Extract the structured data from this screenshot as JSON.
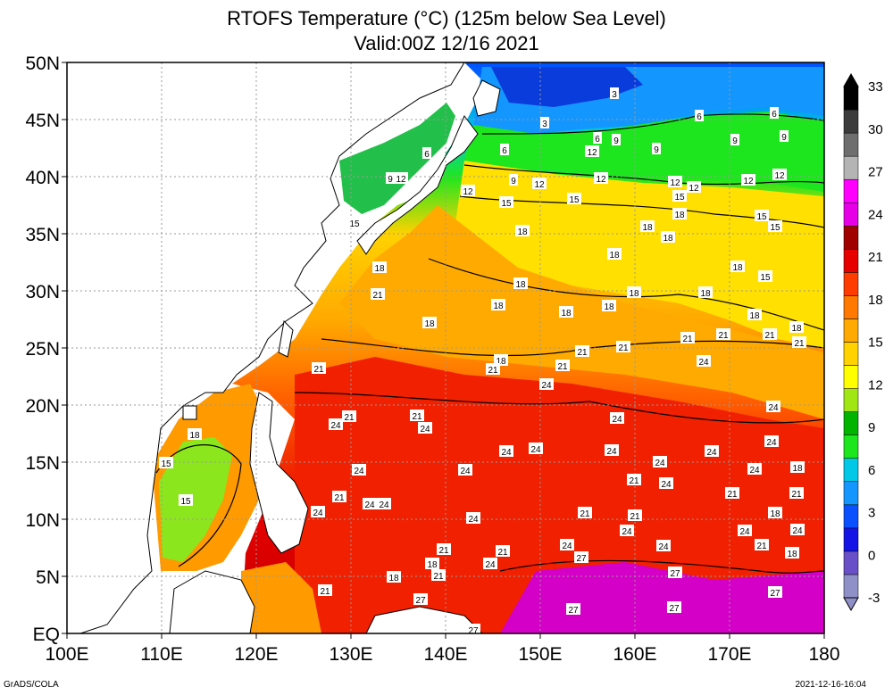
{
  "title": "RTOFS Temperature (°C) (125m below Sea Level)",
  "subtitle": "Valid:00Z 12/16 2021",
  "credit": "GrADS/COLA",
  "timestamp": "2021-12-16-16:04",
  "axes": {
    "lon_labels": [
      "100E",
      "110E",
      "120E",
      "130E",
      "140E",
      "150E",
      "160E",
      "170E",
      "180"
    ],
    "lat_labels": [
      "EQ",
      "5N",
      "10N",
      "15N",
      "20N",
      "25N",
      "30N",
      "35N",
      "40N",
      "45N",
      "50N"
    ]
  },
  "colorbar": {
    "labels": [
      "-3",
      "0",
      "3",
      "6",
      "9",
      "12",
      "15",
      "18",
      "21",
      "24",
      "27",
      "30",
      "33"
    ],
    "colors": [
      "#9090c8",
      "#6a50c8",
      "#1414e6",
      "#0a50ff",
      "#1496ff",
      "#00c8e6",
      "#1ee61e",
      "#00b400",
      "#a0e614",
      "#ffff00",
      "#ffd200",
      "#ffaa00",
      "#ff7800",
      "#ff3c00",
      "#e60000",
      "#a00000",
      "#e600e6",
      "#ff00ff",
      "#b4b4b4",
      "#6e6e6e",
      "#3c3c3c",
      "#000000"
    ]
  },
  "contour_labels": [
    "3",
    "6",
    "9",
    "12",
    "15",
    "18",
    "21",
    "24",
    "27"
  ]
}
